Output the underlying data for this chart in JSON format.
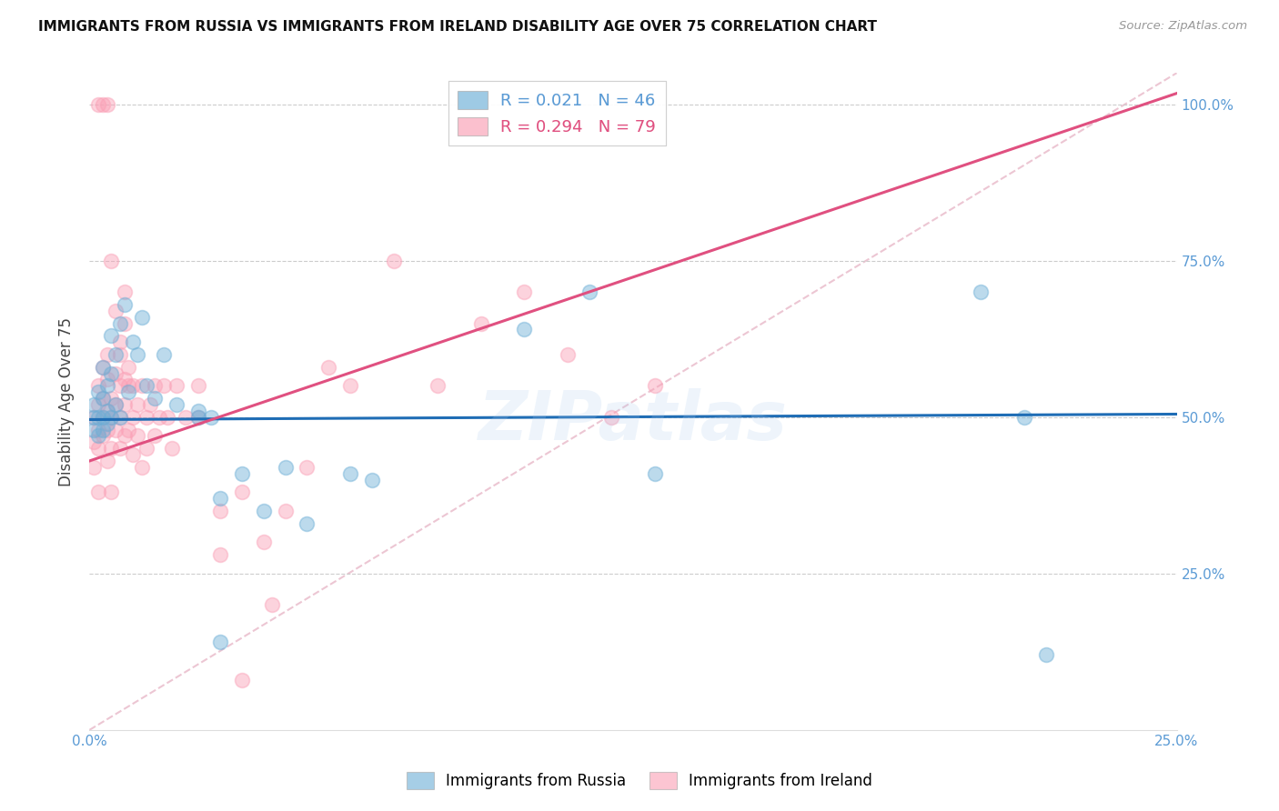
{
  "title": "IMMIGRANTS FROM RUSSIA VS IMMIGRANTS FROM IRELAND DISABILITY AGE OVER 75 CORRELATION CHART",
  "source": "Source: ZipAtlas.com",
  "ylabel": "Disability Age Over 75",
  "xlim": [
    0.0,
    0.25
  ],
  "ylim": [
    0.0,
    1.05
  ],
  "color_russia": "#6baed6",
  "color_ireland": "#fa9fb5",
  "watermark": "ZIPatlas",
  "russia_line_color": "#1f6db5",
  "ireland_line_color": "#e05080",
  "diagonal_color": "#e8b8c8",
  "grid_color": "#cccccc",
  "tick_color": "#5b9bd5",
  "russia_line": {
    "slope": 0.035,
    "intercept": 0.496
  },
  "ireland_line": {
    "slope": 2.35,
    "intercept": 0.43
  },
  "russia_x": [
    0.001,
    0.001,
    0.001,
    0.002,
    0.002,
    0.002,
    0.003,
    0.003,
    0.003,
    0.003,
    0.004,
    0.004,
    0.004,
    0.005,
    0.005,
    0.005,
    0.006,
    0.006,
    0.007,
    0.007,
    0.008,
    0.009,
    0.01,
    0.011,
    0.012,
    0.013,
    0.015,
    0.017,
    0.02,
    0.025,
    0.03,
    0.04,
    0.045,
    0.05,
    0.06,
    0.065,
    0.1,
    0.115,
    0.13,
    0.205,
    0.215,
    0.22,
    0.03,
    0.035,
    0.025,
    0.028
  ],
  "russia_y": [
    0.5,
    0.52,
    0.48,
    0.5,
    0.54,
    0.47,
    0.5,
    0.53,
    0.48,
    0.58,
    0.51,
    0.55,
    0.49,
    0.5,
    0.57,
    0.63,
    0.52,
    0.6,
    0.5,
    0.65,
    0.68,
    0.54,
    0.62,
    0.6,
    0.66,
    0.55,
    0.53,
    0.6,
    0.52,
    0.5,
    0.37,
    0.35,
    0.42,
    0.33,
    0.41,
    0.4,
    0.64,
    0.7,
    0.41,
    0.7,
    0.5,
    0.12,
    0.14,
    0.41,
    0.51,
    0.5
  ],
  "ireland_x": [
    0.001,
    0.001,
    0.001,
    0.002,
    0.002,
    0.002,
    0.002,
    0.002,
    0.003,
    0.003,
    0.003,
    0.003,
    0.004,
    0.004,
    0.004,
    0.004,
    0.004,
    0.005,
    0.005,
    0.005,
    0.005,
    0.006,
    0.006,
    0.006,
    0.007,
    0.007,
    0.007,
    0.007,
    0.008,
    0.008,
    0.008,
    0.008,
    0.009,
    0.009,
    0.009,
    0.01,
    0.01,
    0.01,
    0.011,
    0.011,
    0.012,
    0.012,
    0.013,
    0.013,
    0.014,
    0.015,
    0.015,
    0.016,
    0.017,
    0.018,
    0.019,
    0.02,
    0.022,
    0.025,
    0.025,
    0.03,
    0.03,
    0.035,
    0.04,
    0.042,
    0.045,
    0.05,
    0.055,
    0.06,
    0.07,
    0.08,
    0.09,
    0.1,
    0.11,
    0.12,
    0.002,
    0.003,
    0.004,
    0.005,
    0.006,
    0.007,
    0.008,
    0.035,
    0.13
  ],
  "ireland_y": [
    0.5,
    0.46,
    0.42,
    0.48,
    0.52,
    0.45,
    0.38,
    0.55,
    0.5,
    0.47,
    0.53,
    0.58,
    0.48,
    0.51,
    0.56,
    0.6,
    0.43,
    0.5,
    0.45,
    0.53,
    0.38,
    0.48,
    0.52,
    0.57,
    0.5,
    0.55,
    0.6,
    0.45,
    0.52,
    0.47,
    0.56,
    0.65,
    0.48,
    0.55,
    0.58,
    0.5,
    0.55,
    0.44,
    0.47,
    0.52,
    0.55,
    0.42,
    0.5,
    0.45,
    0.52,
    0.47,
    0.55,
    0.5,
    0.55,
    0.5,
    0.45,
    0.55,
    0.5,
    0.55,
    0.5,
    0.35,
    0.28,
    0.38,
    0.3,
    0.2,
    0.35,
    0.42,
    0.58,
    0.55,
    0.75,
    0.55,
    0.65,
    0.7,
    0.6,
    0.5,
    1.0,
    1.0,
    1.0,
    0.75,
    0.67,
    0.62,
    0.7,
    0.08,
    0.55
  ]
}
